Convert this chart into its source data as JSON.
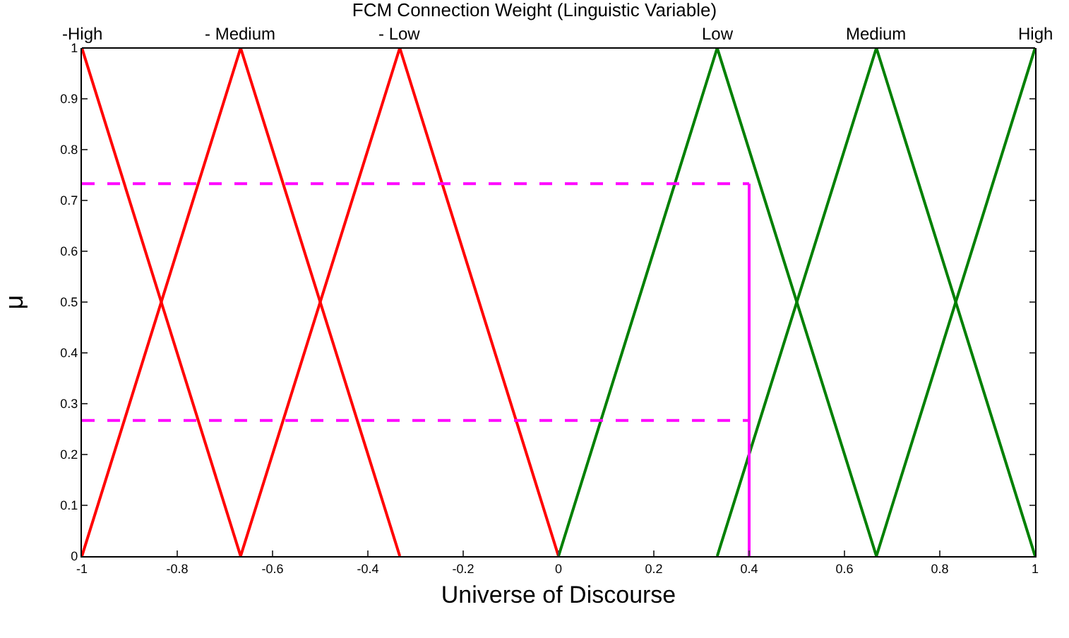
{
  "chart_data": {
    "type": "line",
    "title": "FCM Connection Weight (Linguistic Variable)",
    "xlabel": "Universe of Discourse",
    "ylabel": "μ",
    "xlim": [
      -1,
      1
    ],
    "xticks": [
      -1,
      -0.8,
      -0.6,
      -0.4,
      -0.2,
      0,
      0.2,
      0.4,
      0.6,
      0.8,
      1
    ],
    "ylim": [
      0,
      1
    ],
    "yticks": [
      0,
      0.1,
      0.2,
      0.3,
      0.4,
      0.5,
      0.6,
      0.7,
      0.8,
      0.9,
      1
    ],
    "annotations": [
      {
        "text": "-High",
        "x": -1,
        "y": 1
      },
      {
        "text": "- Medium",
        "x": -0.667,
        "y": 1
      },
      {
        "text": "- Low",
        "x": -0.333,
        "y": 1
      },
      {
        "text": "Low",
        "x": 0.333,
        "y": 1
      },
      {
        "text": "Medium",
        "x": 0.667,
        "y": 1
      },
      {
        "text": "High",
        "x": 1,
        "y": 1
      }
    ],
    "grid": false,
    "marker": "none",
    "line_style": "solid",
    "series": [
      {
        "color": "#ff0000",
        "x": [
          -1,
          -0.667
        ],
        "values": [
          1,
          0
        ]
      },
      {
        "color": "#ff0000",
        "x": [
          -1,
          -0.667,
          -0.333
        ],
        "values": [
          0,
          1,
          0
        ]
      },
      {
        "color": "#ff0000",
        "x": [
          -0.667,
          -0.333,
          0
        ],
        "values": [
          0,
          1,
          0
        ]
      },
      {
        "color": "#008000",
        "x": [
          0,
          0.333,
          0.667
        ],
        "values": [
          0,
          1,
          0
        ]
      },
      {
        "color": "#008000",
        "x": [
          0.333,
          0.667,
          1
        ],
        "values": [
          0,
          1,
          0
        ]
      },
      {
        "color": "#008000",
        "x": [
          0.667,
          1
        ],
        "values": [
          0,
          1
        ]
      },
      {
        "color": "#ff00ff",
        "line_style": "dashed",
        "x": [
          -1,
          0.4
        ],
        "values": [
          0.733,
          0.733
        ]
      },
      {
        "color": "#ff00ff",
        "line_style": "dashed",
        "x": [
          -1,
          0.4
        ],
        "values": [
          0.267,
          0.267
        ]
      },
      {
        "color": "#ff00ff",
        "line_style": "solid",
        "x": [
          0.4,
          0.4
        ],
        "values": [
          0,
          0.733
        ]
      }
    ]
  }
}
